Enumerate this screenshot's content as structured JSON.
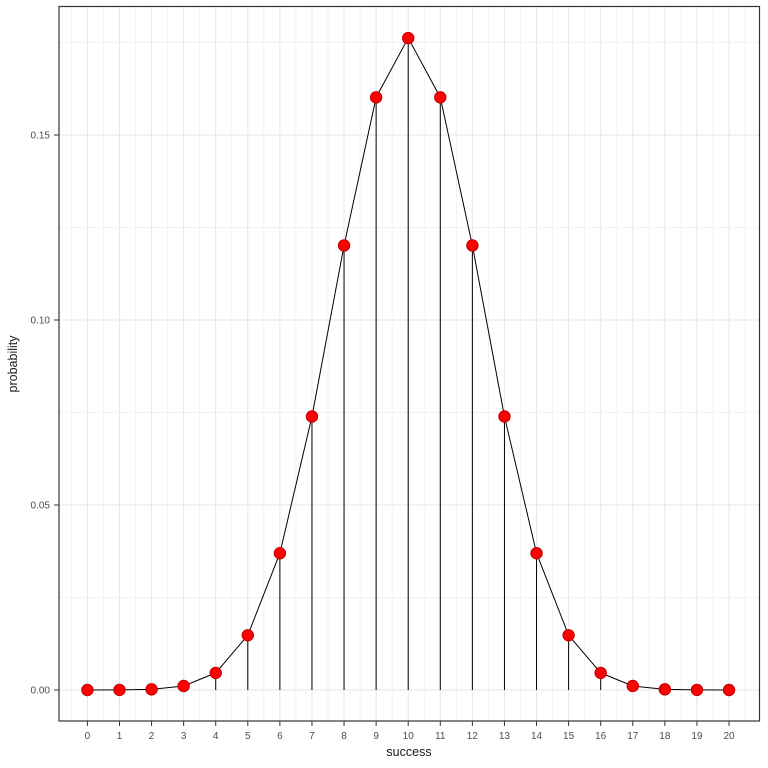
{
  "figure": {
    "background": "#ffffff",
    "panel_background": "#ffffff",
    "panel_border_color": "#333333",
    "grid_major_color": "#e6e6e6",
    "grid_minor_color": "#f2f2f2",
    "tick_mark_color": "#333333",
    "tick_label_color": "#4d4d4d",
    "axis_title_color": "#1a1a1a"
  },
  "chart_data": {
    "type": "line",
    "title": "",
    "xlabel": "success",
    "ylabel": "probability",
    "x": [
      0,
      1,
      2,
      3,
      4,
      5,
      6,
      7,
      8,
      9,
      10,
      11,
      12,
      13,
      14,
      15,
      16,
      17,
      18,
      19,
      20
    ],
    "values": [
      1e-06,
      1.9e-05,
      0.000181,
      0.001087,
      0.004621,
      0.014786,
      0.036964,
      0.073929,
      0.120134,
      0.160179,
      0.176197,
      0.160179,
      0.120134,
      0.073929,
      0.036964,
      0.014786,
      0.004621,
      0.001087,
      0.000181,
      1.9e-05,
      1e-06
    ],
    "x_tick_labels": [
      "0",
      "1",
      "2",
      "3",
      "4",
      "5",
      "6",
      "7",
      "8",
      "9",
      "10",
      "11",
      "12",
      "13",
      "14",
      "15",
      "16",
      "17",
      "18",
      "19",
      "20"
    ],
    "y_tick_labels": [
      "0.00",
      "0.05",
      "0.10",
      "0.15"
    ],
    "y_tick_values": [
      0.0,
      0.05,
      0.1,
      0.15
    ],
    "y_minor_values": [
      0.025,
      0.075,
      0.125,
      0.175
    ],
    "x_minor_values": [
      -0.5,
      0.5,
      1.5,
      2.5,
      3.5,
      4.5,
      5.5,
      6.5,
      7.5,
      8.5,
      9.5,
      10.5,
      11.5,
      12.5,
      13.5,
      14.5,
      15.5,
      16.5,
      17.5,
      18.5,
      19.5,
      20.5
    ],
    "xlim": [
      -0.885,
      20.95
    ],
    "ylim": [
      -0.00838,
      0.18473
    ],
    "grid": "major+minor",
    "legend": "none",
    "point_color": "#ff0000",
    "point_stroke_color": "#c00000",
    "line_color": "#000000",
    "segment_color": "#000000",
    "segments_to_zero": true
  }
}
